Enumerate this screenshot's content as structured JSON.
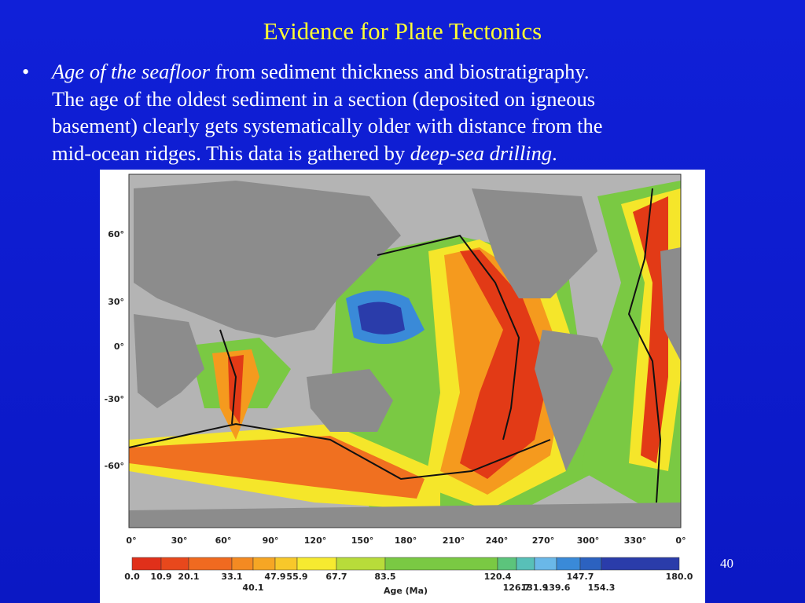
{
  "title": "Evidence for Plate Tectonics",
  "bullet": {
    "lines": [
      [
        "Age of the seafloor",
        " from sediment thickness and biostratigraphy."
      ],
      [
        "The age of the oldest sediment in a section (deposited on igneous"
      ],
      [
        "basement) clearly gets systematically older with distance from the"
      ],
      [
        "mid-ocean ridges. This data is gathered by ",
        "deep-sea drilling",
        "."
      ]
    ]
  },
  "map": {
    "lat_labels": [
      "60°",
      "30°",
      "0°",
      "-30°",
      "-60°"
    ],
    "lon_labels": [
      "0°",
      "30°",
      "60°",
      "90°",
      "120°",
      "150°",
      "180°",
      "210°",
      "240°",
      "270°",
      "300°",
      "330°",
      "0°"
    ],
    "colorbar": {
      "labels": [
        "0.0",
        "10.9",
        "20.1",
        "33.1",
        "40.1",
        "47.9",
        "55.9",
        "67.7",
        "83.5",
        "120.4",
        "126.7",
        "131.9",
        "139.6",
        "147.7",
        "154.3",
        "180.0"
      ],
      "title": "Age (Ma)"
    }
  },
  "page_number": "40"
}
